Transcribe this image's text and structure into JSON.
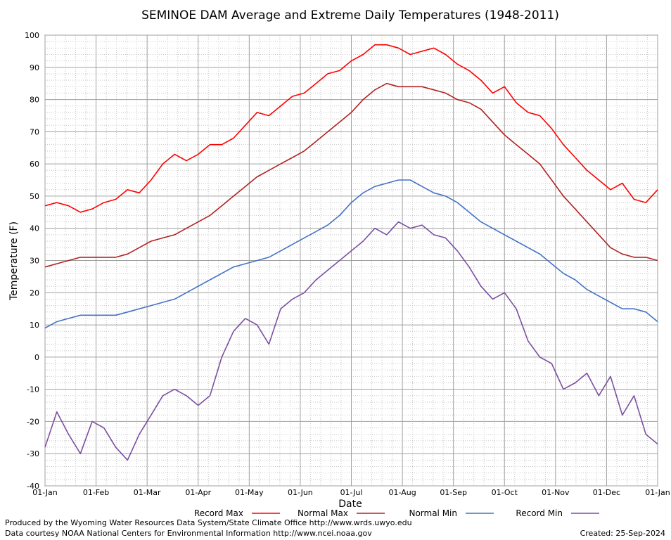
{
  "chart_data": {
    "type": "line",
    "title": "SEMINOE DAM Average and Extreme Daily Temperatures (1948-2011)",
    "xlabel": "Date",
    "ylabel": "Temperature (F)",
    "ylim": [
      -40,
      100
    ],
    "yticks": [
      100,
      90,
      80,
      70,
      60,
      50,
      40,
      30,
      20,
      10,
      0,
      -10,
      -20,
      -30,
      -40
    ],
    "xlim": [
      "01-Jan",
      "01-Jan (next year)"
    ],
    "xticks": [
      "01-Jan",
      "01-Feb",
      "01-Mar",
      "01-Apr",
      "01-May",
      "01-Jun",
      "01-Jul",
      "01-Aug",
      "01-Sep",
      "01-Oct",
      "01-Nov",
      "01-Dec",
      "01-Jan"
    ],
    "grid": true,
    "legend_position": "bottom",
    "x_dates": [
      "01-Jan",
      "08-Jan",
      "15-Jan",
      "22-Jan",
      "29-Jan",
      "05-Feb",
      "12-Feb",
      "19-Feb",
      "26-Feb",
      "05-Mar",
      "12-Mar",
      "19-Mar",
      "26-Mar",
      "02-Apr",
      "09-Apr",
      "16-Apr",
      "23-Apr",
      "30-Apr",
      "07-May",
      "14-May",
      "21-May",
      "28-May",
      "04-Jun",
      "11-Jun",
      "18-Jun",
      "25-Jun",
      "02-Jul",
      "09-Jul",
      "16-Jul",
      "23-Jul",
      "30-Jul",
      "06-Aug",
      "13-Aug",
      "20-Aug",
      "27-Aug",
      "03-Sep",
      "10-Sep",
      "17-Sep",
      "24-Sep",
      "01-Oct",
      "08-Oct",
      "15-Oct",
      "22-Oct",
      "29-Oct",
      "05-Nov",
      "12-Nov",
      "19-Nov",
      "26-Nov",
      "03-Dec",
      "10-Dec",
      "17-Dec",
      "24-Dec",
      "31-Dec"
    ],
    "series": [
      {
        "name": "Record Max",
        "color": "#ff0000",
        "values": [
          47,
          48,
          47,
          45,
          46,
          48,
          49,
          52,
          51,
          55,
          60,
          63,
          61,
          63,
          66,
          66,
          68,
          72,
          76,
          75,
          78,
          81,
          82,
          85,
          88,
          89,
          92,
          94,
          97,
          97,
          96,
          94,
          95,
          96,
          94,
          91,
          89,
          86,
          82,
          84,
          79,
          76,
          75,
          71,
          66,
          62,
          58,
          55,
          52,
          54,
          49,
          48,
          52
        ]
      },
      {
        "name": "Normal Max",
        "color": "#b22222",
        "values": [
          28,
          29,
          30,
          31,
          31,
          31,
          31,
          32,
          34,
          36,
          37,
          38,
          40,
          42,
          44,
          47,
          50,
          53,
          56,
          58,
          60,
          62,
          64,
          67,
          70,
          73,
          76,
          80,
          83,
          85,
          84,
          84,
          84,
          83,
          82,
          80,
          79,
          77,
          73,
          69,
          66,
          63,
          60,
          55,
          50,
          46,
          42,
          38,
          34,
          32,
          31,
          31,
          30
        ]
      },
      {
        "name": "Normal Min",
        "color": "#4472c4",
        "values": [
          9,
          11,
          12,
          13,
          13,
          13,
          13,
          14,
          15,
          16,
          17,
          18,
          20,
          22,
          24,
          26,
          28,
          29,
          30,
          31,
          33,
          35,
          37,
          39,
          41,
          44,
          48,
          51,
          53,
          54,
          55,
          55,
          53,
          51,
          50,
          48,
          45,
          42,
          40,
          38,
          36,
          34,
          32,
          29,
          26,
          24,
          21,
          19,
          17,
          15,
          15,
          14,
          11
        ]
      },
      {
        "name": "Record Min",
        "color": "#7b4fa0",
        "values": [
          -28,
          -17,
          -24,
          -30,
          -20,
          -22,
          -28,
          -32,
          -24,
          -18,
          -12,
          -10,
          -12,
          -15,
          -12,
          0,
          8,
          12,
          10,
          4,
          15,
          18,
          20,
          24,
          27,
          30,
          33,
          36,
          40,
          38,
          42,
          40,
          41,
          38,
          37,
          33,
          28,
          22,
          18,
          20,
          15,
          5,
          0,
          -2,
          -10,
          -8,
          -5,
          -12,
          -6,
          -18,
          -12,
          -24,
          -27
        ]
      }
    ]
  },
  "footer": {
    "line1": "Produced by the Wyoming Water Resources Data System/State Climate Office http://www.wrds.uwyo.edu",
    "line2": "Data courtesy NOAA National Centers for Environmental Information http://www.ncei.noaa.gov",
    "created": "Created:  25-Sep-2024"
  }
}
